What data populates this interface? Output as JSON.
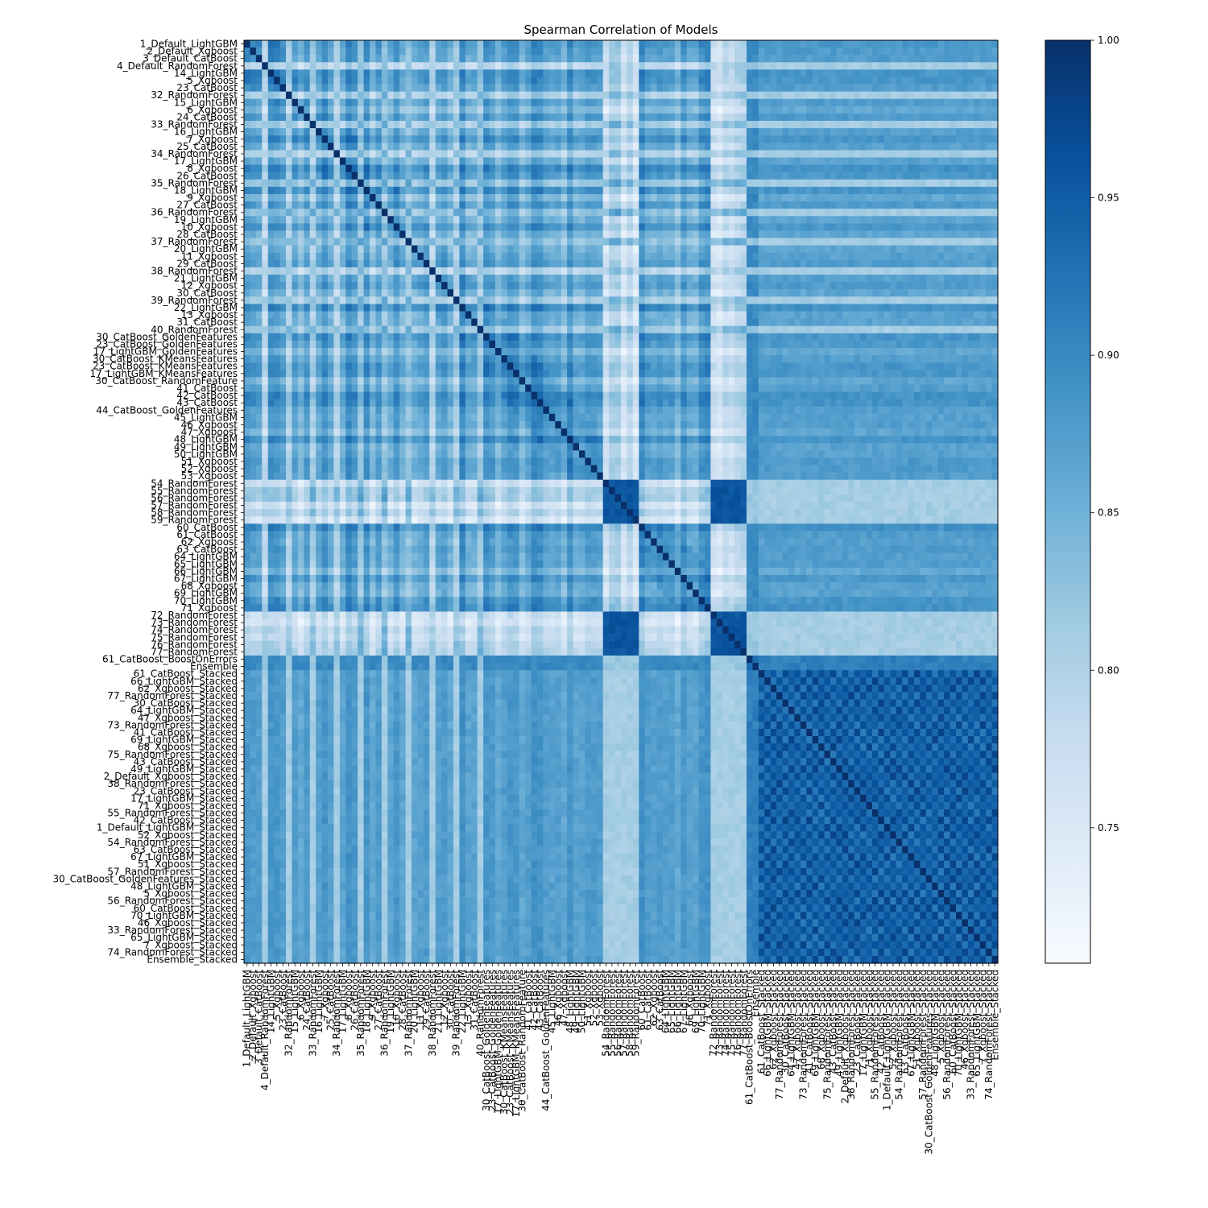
{
  "chart_data": {
    "type": "heatmap",
    "title": "Spearman Correlation of Models",
    "xlabel": "",
    "ylabel": "",
    "labels": [
      "1_Default_LightGBM",
      "2_Default_Xgboost",
      "3_Default_CatBoost",
      "4_Default_RandomForest",
      "14_LightGBM",
      "5_Xgboost",
      "23_CatBoost",
      "32_RandomForest",
      "15_LightGBM",
      "6_Xgboost",
      "24_CatBoost",
      "33_RandomForest",
      "16_LightGBM",
      "7_Xgboost",
      "25_CatBoost",
      "34_RandomForest",
      "17_LightGBM",
      "8_Xgboost",
      "26_CatBoost",
      "35_RandomForest",
      "18_LightGBM",
      "9_Xgboost",
      "27_CatBoost",
      "36_RandomForest",
      "19_LightGBM",
      "10_Xgboost",
      "28_CatBoost",
      "37_RandomForest",
      "20_LightGBM",
      "11_Xgboost",
      "29_CatBoost",
      "38_RandomForest",
      "21_LightGBM",
      "12_Xgboost",
      "30_CatBoost",
      "39_RandomForest",
      "22_LightGBM",
      "13_Xgboost",
      "31_CatBoost",
      "40_RandomForest",
      "30_CatBoost_GoldenFeatures",
      "23_CatBoost_GoldenFeatures",
      "17_LightGBM_GoldenFeatures",
      "30_CatBoost_KMeansFeatures",
      "23_CatBoost_KMeansFeatures",
      "17_LightGBM_KMeansFeatures",
      "30_CatBoost_RandomFeature",
      "41_CatBoost",
      "42_CatBoost",
      "43_CatBoost",
      "44_CatBoost_GoldenFeatures",
      "45_LightGBM",
      "46_Xgboost",
      "47_Xgboost",
      "48_LightGBM",
      "49_LightGBM",
      "50_LightGBM",
      "51_Xgboost",
      "52_Xgboost",
      "53_Xgboost",
      "54_RandomForest",
      "55_RandomForest",
      "56_RandomForest",
      "57_RandomForest",
      "58_RandomForest",
      "59_RandomForest",
      "60_CatBoost",
      "61_CatBoost",
      "62_Xgboost",
      "63_CatBoost",
      "64_LightGBM",
      "65_LightGBM",
      "66_LightGBM",
      "67_LightGBM",
      "68_Xgboost",
      "69_LightGBM",
      "70_LightGBM",
      "71_Xgboost",
      "72_RandomForest",
      "73_RandomForest",
      "74_RandomForest",
      "75_RandomForest",
      "76_RandomForest",
      "77_RandomForest",
      "61_CatBoost_BoostOnErrors",
      "Ensemble",
      "61_CatBoost_Stacked",
      "66_LightGBM_Stacked",
      "62_Xgboost_Stacked",
      "77_RandomForest_Stacked",
      "30_CatBoost_Stacked",
      "64_LightGBM_Stacked",
      "47_Xgboost_Stacked",
      "73_RandomForest_Stacked",
      "41_CatBoost_Stacked",
      "69_LightGBM_Stacked",
      "68_Xgboost_Stacked",
      "75_RandomForest_Stacked",
      "43_CatBoost_Stacked",
      "49_LightGBM_Stacked",
      "2_Default_Xgboost_Stacked",
      "38_RandomForest_Stacked",
      "23_CatBoost_Stacked",
      "17_LightGBM_Stacked",
      "71_Xgboost_Stacked",
      "55_RandomForest_Stacked",
      "42_CatBoost_Stacked",
      "1_Default_LightGBM_Stacked",
      "52_Xgboost_Stacked",
      "54_RandomForest_Stacked",
      "63_CatBoost_Stacked",
      "67_LightGBM_Stacked",
      "51_Xgboost_Stacked",
      "57_RandomForest_Stacked",
      "30_CatBoost_GoldenFeatures_Stacked",
      "48_LightGBM_Stacked",
      "5_Xgboost_Stacked",
      "56_RandomForest_Stacked",
      "60_CatBoost_Stacked",
      "70_LightGBM_Stacked",
      "46_Xgboost_Stacked",
      "33_RandomForest_Stacked",
      "65_LightGBM_Stacked",
      "7_Xgboost_Stacked",
      "74_RandomForest_Stacked",
      "Ensemble_Stacked"
    ],
    "colormap": "Blues",
    "vmin": 0.707,
    "vmax": 1.0,
    "colorbar_ticks": [
      "0.75",
      "0.80",
      "0.85",
      "0.90",
      "0.95",
      "1.00"
    ],
    "colorbar_tick_values": [
      0.75,
      0.8,
      0.85,
      0.9,
      0.95,
      1.0
    ],
    "grid": false
  }
}
